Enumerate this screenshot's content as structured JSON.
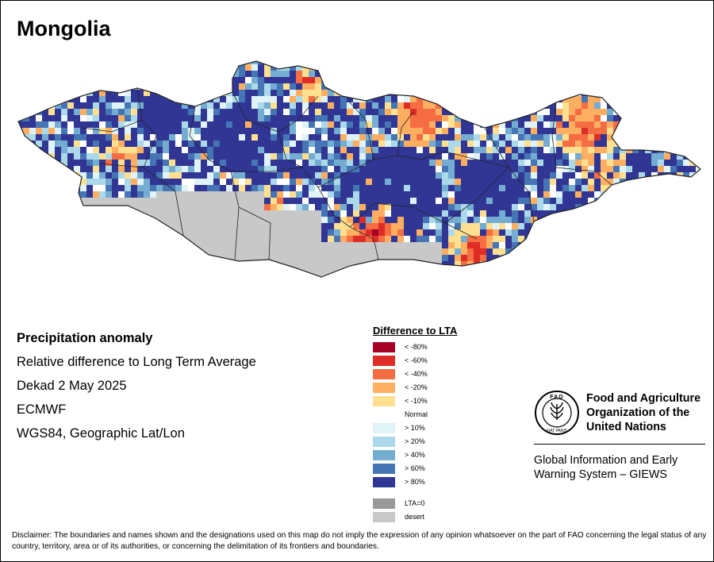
{
  "title": "Mongolia",
  "info": {
    "heading": "Precipitation anomaly",
    "subheading": "Relative difference to Long Term Average",
    "period": "Dekad 2 May 2025",
    "source": "ECMWF",
    "projection": "WGS84, Geographic Lat/Lon"
  },
  "legend": {
    "title": "Difference to LTA",
    "classes": [
      {
        "label": "< -80%",
        "color": "#a50026"
      },
      {
        "label": "< -60%",
        "color": "#de2d26"
      },
      {
        "label": "< -40%",
        "color": "#f46d43"
      },
      {
        "label": "< -20%",
        "color": "#fdae61"
      },
      {
        "label": "< -10%",
        "color": "#fee090"
      },
      {
        "label": "Normal",
        "color": "#ffffff"
      },
      {
        "label": "> 10%",
        "color": "#e0f3f8"
      },
      {
        "label": "> 20%",
        "color": "#abd9e9"
      },
      {
        "label": "> 40%",
        "color": "#74add1"
      },
      {
        "label": "> 60%",
        "color": "#4575b4"
      },
      {
        "label": "> 80%",
        "color": "#313695"
      }
    ],
    "extra": [
      {
        "label": "LTA=0",
        "color": "#999999"
      },
      {
        "label": "desert",
        "color": "#c8c8c8"
      }
    ]
  },
  "organization": {
    "name_line1": "Food and Agriculture",
    "name_line2": "Organization of the",
    "name_line3": "United Nations",
    "emblem_letters": "FAO",
    "emblem_motto": "FIAT PANIS",
    "system_line1": "Global Information and Early",
    "system_line2": "Warning System – GIEWS"
  },
  "disclaimer": "Disclaimer: The boundaries and names shown and the designations used on this map do not imply the expression of any opinion whatsoever on the part of FAO concerning the legal status of any country, territory, area or of its authorities, or concerning the delimitation of its frontiers and boundaries.",
  "map": {
    "country": "Mongolia",
    "desert_color": "#c8c8c8",
    "border_color": "#222222"
  }
}
